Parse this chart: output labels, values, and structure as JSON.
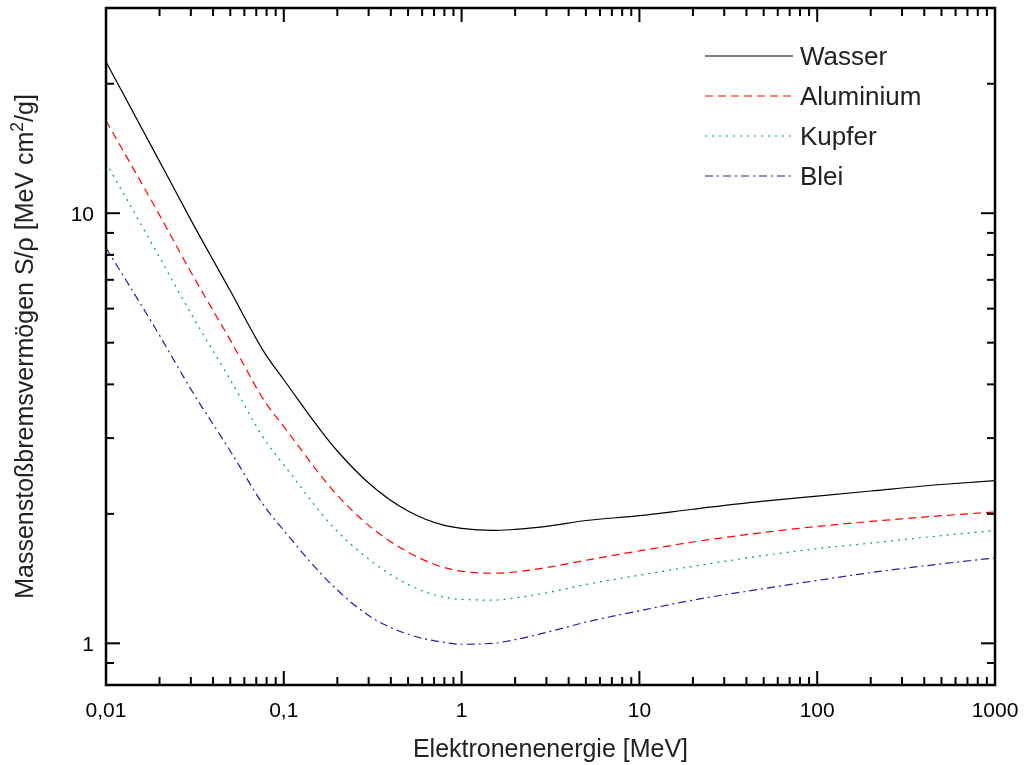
{
  "chart_data": {
    "type": "line",
    "xlabel": "Elektronenenergie [MeV]",
    "ylabel": "Massenstoßbremsvermögen S/ρ   [MeV cm$^{2}$/g]",
    "log": "xy",
    "grid": false,
    "legend": "top right",
    "x": [
      0.01,
      0.02,
      0.03,
      0.05,
      0.08,
      0.1,
      0.2,
      0.3,
      0.5,
      0.8,
      1,
      1.5,
      2,
      3,
      5,
      10,
      20,
      50,
      100,
      200,
      500,
      1000
    ],
    "xlim": [
      0.01,
      1000
    ],
    "xticks": [
      {
        "value": 0.01,
        "label": "0,01"
      },
      {
        "value": 0.02,
        "label": null
      },
      {
        "value": 0.03,
        "label": null
      },
      {
        "value": 0.04,
        "label": null
      },
      {
        "value": 0.05,
        "label": null
      },
      {
        "value": 0.06,
        "label": null
      },
      {
        "value": 0.07,
        "label": null
      },
      {
        "value": 0.08,
        "label": null
      },
      {
        "value": 0.09,
        "label": null
      },
      {
        "value": 0.1,
        "label": "0,1"
      },
      {
        "value": 0.2,
        "label": null
      },
      {
        "value": 0.3,
        "label": null
      },
      {
        "value": 0.4,
        "label": null
      },
      {
        "value": 0.5,
        "label": null
      },
      {
        "value": 0.6,
        "label": null
      },
      {
        "value": 0.7,
        "label": null
      },
      {
        "value": 0.8,
        "label": null
      },
      {
        "value": 0.9,
        "label": null
      },
      1,
      {
        "value": 2,
        "label": null
      },
      {
        "value": 3,
        "label": null
      },
      {
        "value": 4,
        "label": null
      },
      {
        "value": 5,
        "label": null
      },
      {
        "value": 6,
        "label": null
      },
      {
        "value": 7,
        "label": null
      },
      {
        "value": 8,
        "label": null
      },
      {
        "value": 9,
        "label": null
      },
      10,
      {
        "value": 20,
        "label": null
      },
      {
        "value": 30,
        "label": null
      },
      {
        "value": 40,
        "label": null
      },
      {
        "value": 50,
        "label": null
      },
      {
        "value": 60,
        "label": null
      },
      {
        "value": 70,
        "label": null
      },
      {
        "value": 80,
        "label": null
      },
      {
        "value": 90,
        "label": null
      },
      100,
      {
        "value": 200,
        "label": null
      },
      {
        "value": 300,
        "label": null
      },
      {
        "value": 400,
        "label": null
      },
      {
        "value": 500,
        "label": null
      },
      {
        "value": 600,
        "label": null
      },
      {
        "value": 700,
        "label": null
      },
      {
        "value": 800,
        "label": null
      },
      {
        "value": 900,
        "label": null
      },
      1000
    ],
    "ylim": [
      0.8,
      30
    ],
    "yticks": [
      {
        "value": 0.9,
        "label": null
      },
      1,
      {
        "value": 2,
        "label": null
      },
      {
        "value": 3,
        "label": null
      },
      {
        "value": 4,
        "label": null
      },
      {
        "value": 5,
        "label": null
      },
      {
        "value": 6,
        "label": null
      },
      {
        "value": 7,
        "label": null
      },
      {
        "value": 8,
        "label": null
      },
      {
        "value": 9,
        "label": null
      },
      10,
      {
        "value": 20,
        "label": null
      }
    ],
    "series": [
      {
        "name": "Wasser",
        "color": "#000000",
        "line_style": "solid",
        "values": [
          22.5,
          13.2,
          9.65,
          6.6,
          4.66,
          4.1,
          2.8,
          2.36,
          2.03,
          1.88,
          1.85,
          1.83,
          1.84,
          1.87,
          1.93,
          1.98,
          2.05,
          2.14,
          2.2,
          2.26,
          2.34,
          2.39
        ]
      },
      {
        "name": "Aluminium",
        "color": "#ff0000",
        "line_style": "dashed",
        "values": [
          16.4,
          9.9,
          7.3,
          5.07,
          3.6,
          3.19,
          2.21,
          1.88,
          1.63,
          1.5,
          1.47,
          1.455,
          1.465,
          1.5,
          1.56,
          1.64,
          1.72,
          1.81,
          1.87,
          1.92,
          1.98,
          2.02
        ]
      },
      {
        "name": "Kupfer",
        "color": "#00a060",
        "line_style": "dotted",
        "values": [
          13.1,
          7.9,
          5.85,
          4.1,
          2.93,
          2.6,
          1.82,
          1.57,
          1.37,
          1.28,
          1.265,
          1.26,
          1.275,
          1.31,
          1.37,
          1.44,
          1.51,
          1.6,
          1.66,
          1.71,
          1.78,
          1.83
        ]
      },
      {
        "name": "Blei",
        "color": "#2020a0",
        "line_style": "dashdot",
        "values": [
          8.3,
          5.2,
          3.9,
          2.8,
          2.05,
          1.83,
          1.33,
          1.16,
          1.05,
          1.005,
          0.995,
          1.0,
          1.02,
          1.06,
          1.12,
          1.19,
          1.26,
          1.34,
          1.4,
          1.46,
          1.53,
          1.58
        ]
      }
    ]
  }
}
